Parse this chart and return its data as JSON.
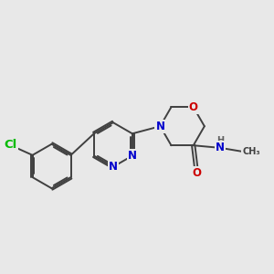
{
  "background_color": "#e8e8e8",
  "bond_color": "#404040",
  "atom_colors": {
    "N": "#0000cc",
    "O": "#cc0000",
    "Cl": "#00bb00",
    "H": "#606060",
    "C": "#404040"
  },
  "font_size": 8.5,
  "line_width": 1.4,
  "figsize": [
    3.0,
    3.0
  ],
  "dpi": 100
}
